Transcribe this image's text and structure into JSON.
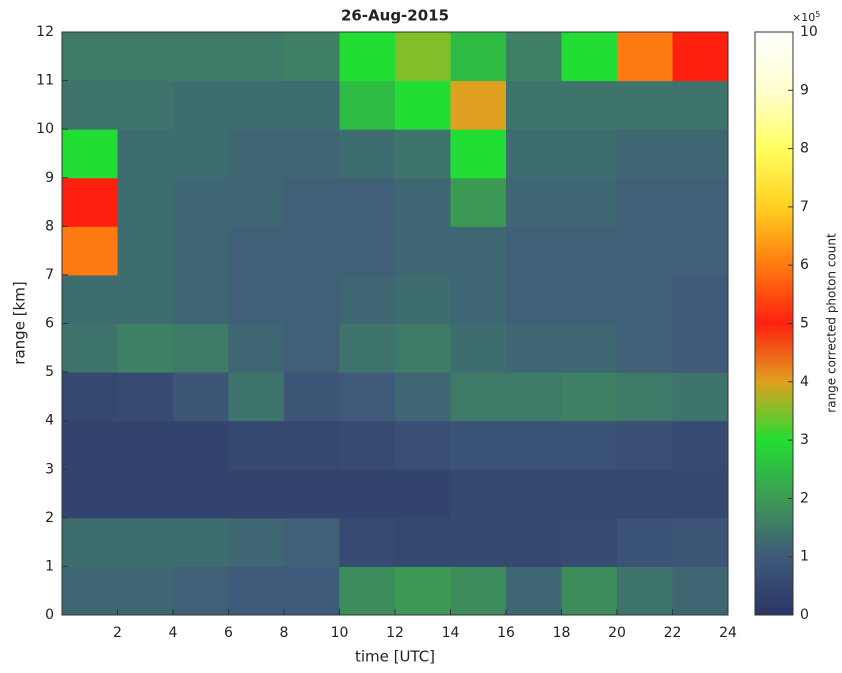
{
  "chart_data": {
    "type": "heatmap",
    "title": "26-Aug-2015",
    "xlabel": "time [UTC]",
    "ylabel": "range [km]",
    "colorbar_label": "range corrected photon count",
    "colorbar_scale_base": "×10",
    "colorbar_scale_exp": "5",
    "xlim": [
      0,
      24
    ],
    "xticks": [
      2,
      4,
      6,
      8,
      10,
      12,
      14,
      16,
      18,
      20,
      22,
      24
    ],
    "ylim": [
      0,
      12
    ],
    "yticks": [
      0,
      1,
      2,
      3,
      4,
      5,
      6,
      7,
      8,
      9,
      10,
      11,
      12
    ],
    "clim": [
      0,
      10
    ],
    "cticks": [
      0,
      1,
      2,
      3,
      4,
      5,
      6,
      7,
      8,
      9,
      10
    ],
    "colormap": [
      "#2a3565",
      "#3f5a7a",
      "#3c9a55",
      "#22dd33",
      "#e0a020",
      "#ff2010",
      "#ff7a10",
      "#ffd020",
      "#ffff60",
      "#ffffd0",
      "#ffffff"
    ],
    "x": [
      1,
      3,
      5,
      7,
      9,
      11,
      13,
      15,
      17,
      19,
      21,
      23
    ],
    "y": [
      0.5,
      1.5,
      2.5,
      3.5,
      4.5,
      5.5,
      6.5,
      7.5,
      8.5,
      9.5,
      10.5,
      11.5
    ],
    "values": [
      [
        1.2,
        1.2,
        1.1,
        1.0,
        1.0,
        1.8,
        2.0,
        1.8,
        1.2,
        1.8,
        1.4,
        1.2
      ],
      [
        1.3,
        1.3,
        1.3,
        1.2,
        1.1,
        0.6,
        0.5,
        0.5,
        0.5,
        0.6,
        0.8,
        0.9
      ],
      [
        0.4,
        0.4,
        0.4,
        0.4,
        0.4,
        0.4,
        0.4,
        0.5,
        0.5,
        0.5,
        0.5,
        0.5
      ],
      [
        0.4,
        0.4,
        0.4,
        0.5,
        0.5,
        0.6,
        0.7,
        0.8,
        0.8,
        0.8,
        0.7,
        0.6
      ],
      [
        0.5,
        0.6,
        0.9,
        1.4,
        0.9,
        1.0,
        1.2,
        1.5,
        1.5,
        1.6,
        1.5,
        1.4
      ],
      [
        1.4,
        1.6,
        1.5,
        1.2,
        1.1,
        1.4,
        1.5,
        1.3,
        1.2,
        1.2,
        1.1,
        1.0
      ],
      [
        1.3,
        1.3,
        1.2,
        1.1,
        1.1,
        1.2,
        1.3,
        1.2,
        1.1,
        1.1,
        1.1,
        1.0
      ],
      [
        6.0,
        1.3,
        1.2,
        1.1,
        1.1,
        1.1,
        1.2,
        1.2,
        1.1,
        1.1,
        1.1,
        1.1
      ],
      [
        5.0,
        1.3,
        1.2,
        1.2,
        1.1,
        1.1,
        1.2,
        2.0,
        1.2,
        1.2,
        1.1,
        1.1
      ],
      [
        3.0,
        1.3,
        1.3,
        1.2,
        1.2,
        1.3,
        1.4,
        3.0,
        1.3,
        1.3,
        1.2,
        1.2
      ],
      [
        1.4,
        1.4,
        1.3,
        1.3,
        1.3,
        2.5,
        3.0,
        4.0,
        1.4,
        1.4,
        1.4,
        1.4
      ],
      [
        1.5,
        1.5,
        1.5,
        1.5,
        1.6,
        3.0,
        3.5,
        2.5,
        1.6,
        3.0,
        6.0,
        5.0
      ]
    ]
  }
}
